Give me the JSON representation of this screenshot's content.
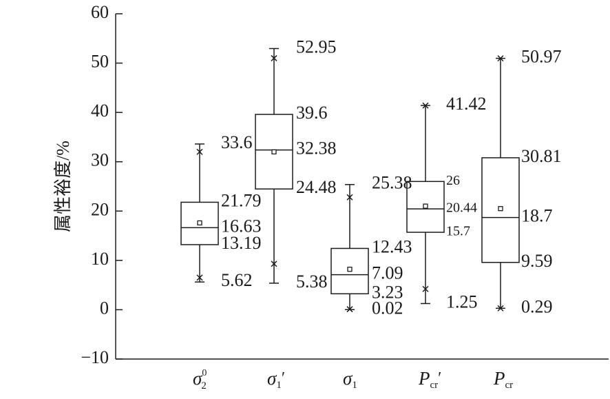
{
  "chart_data": {
    "type": "box",
    "ylabel": "属性裕度/%",
    "ylim": [
      -10,
      60
    ],
    "yticks": [
      "60",
      "50",
      "40",
      "30",
      "20",
      "10",
      "0",
      "−10"
    ],
    "ytick_values": [
      60,
      50,
      40,
      30,
      20,
      10,
      0,
      -10
    ],
    "grid": false,
    "legend": "none",
    "categories": [
      {
        "symbol": "σ",
        "sub": "2",
        "sup": "0",
        "prime": ""
      },
      {
        "symbol": "σ",
        "sub": "1",
        "sup": "",
        "prime": "′"
      },
      {
        "symbol": "σ",
        "sub": "1",
        "sup": "",
        "prime": ""
      },
      {
        "symbol": "P",
        "sub": "cr",
        "sup": "",
        "prime": "′"
      },
      {
        "symbol": "P",
        "sub": "cr",
        "sup": "",
        "prime": ""
      }
    ],
    "boxes": [
      {
        "max": 33.6,
        "q3": 21.79,
        "median": 16.63,
        "q1": 13.19,
        "min": 5.62,
        "mean": 17.6,
        "x_top": 32.0,
        "x_bottom": 6.5,
        "labels": {
          "max": "33.6",
          "q3": "21.79",
          "median": "16.63",
          "q1": "13.19",
          "min": "5.62"
        }
      },
      {
        "max": 52.95,
        "q3": 39.6,
        "median": 32.38,
        "q1": 24.48,
        "min": 5.38,
        "mean": 32.0,
        "x_top": 51.0,
        "x_bottom": 9.3,
        "labels": {
          "max": "52.95",
          "q3": "39.6",
          "median": "32.38",
          "q1": "24.48",
          "min": "5.38"
        }
      },
      {
        "max": 25.38,
        "q3": 12.43,
        "median": 7.09,
        "q1": 3.23,
        "min": 0.02,
        "mean": 8.2,
        "x_top": 22.8,
        "x_bottom": 0.1,
        "labels": {
          "max": "25.38",
          "q3": "12.43",
          "median": "7.09",
          "q1": "3.23",
          "min": "0.02"
        }
      },
      {
        "max": 41.42,
        "q3": 26,
        "median": 20.44,
        "q1": 15.7,
        "min": 1.25,
        "mean": 21.0,
        "x_top": 41.4,
        "x_bottom": 4.2,
        "labels": {
          "max": "41.42",
          "q3": "26",
          "median": "20.44",
          "q1": "15.7",
          "min": "1.25"
        }
      },
      {
        "max": 50.97,
        "q3": 30.81,
        "median": 18.7,
        "q1": 9.59,
        "min": 0.29,
        "mean": 20.5,
        "x_top": 50.97,
        "x_bottom": 0.29,
        "labels": {
          "max": "50.97",
          "q3": "30.81",
          "median": "18.7",
          "q1": "9.59",
          "min": "0.29"
        }
      }
    ]
  }
}
